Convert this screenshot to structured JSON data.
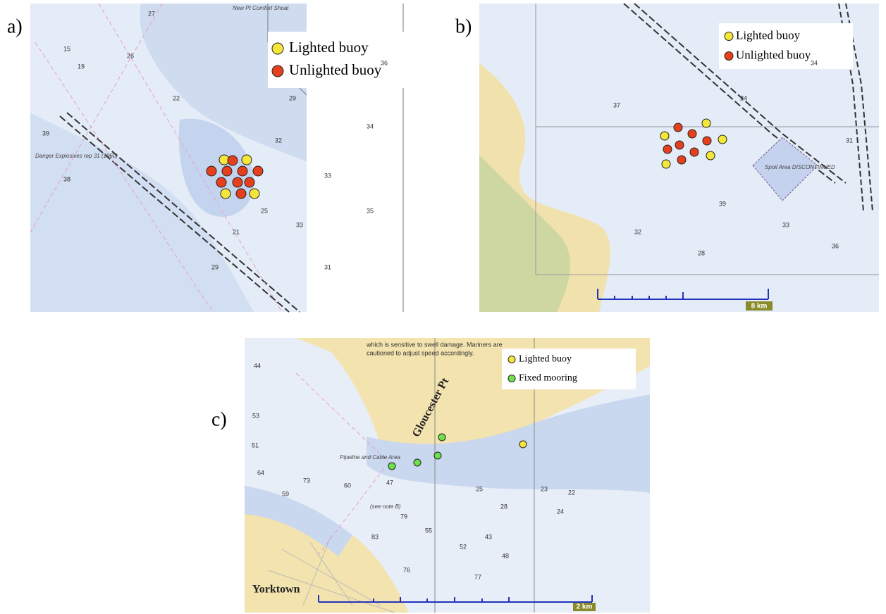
{
  "panels": [
    {
      "label": "a)",
      "legend": [
        {
          "label": "Lighted buoy",
          "color": "#f5e63a"
        },
        {
          "label": "Unlighted buoy",
          "color": "#e5401e"
        }
      ],
      "place_names": [
        "New Pt Comfort Shoal",
        "Danger Explosives rep 31 (1960)"
      ],
      "soundings": [
        "27",
        "15",
        "19",
        "26",
        "22",
        "29",
        "32",
        "33",
        "35",
        "38",
        "39",
        "25",
        "31",
        "21",
        "29",
        "33",
        "34",
        "36"
      ]
    },
    {
      "label": "b)",
      "legend": [
        {
          "label": "Lighted buoy",
          "color": "#f5e63a"
        },
        {
          "label": "Unlighted buoy",
          "color": "#e5401e"
        }
      ],
      "place_names": [
        "Spoil Area DISCONTINUED"
      ],
      "soundings": [
        "24",
        "34",
        "33",
        "36",
        "32",
        "39",
        "37",
        "31",
        "28"
      ],
      "scale": "8 km"
    },
    {
      "label": "c)",
      "legend": [
        {
          "label": "Lighted buoy",
          "color": "#f5e63a"
        },
        {
          "label": "Fixed mooring",
          "color": "#6ee04a"
        }
      ],
      "place_names": [
        "Yorktown",
        "Gloucester Pt",
        "Pipeline and Cable Area",
        "(see note B)"
      ],
      "notes": [
        "which is sensitive to swell damage. Mariners are",
        "cautioned to adjust speed accordingly."
      ],
      "soundings": [
        "44",
        "53",
        "51",
        "64",
        "73",
        "59",
        "60",
        "47",
        "25",
        "28",
        "23",
        "22",
        "24",
        "43",
        "52",
        "48",
        "77",
        "79",
        "83",
        "55",
        "76"
      ],
      "scale": "2 km"
    }
  ]
}
